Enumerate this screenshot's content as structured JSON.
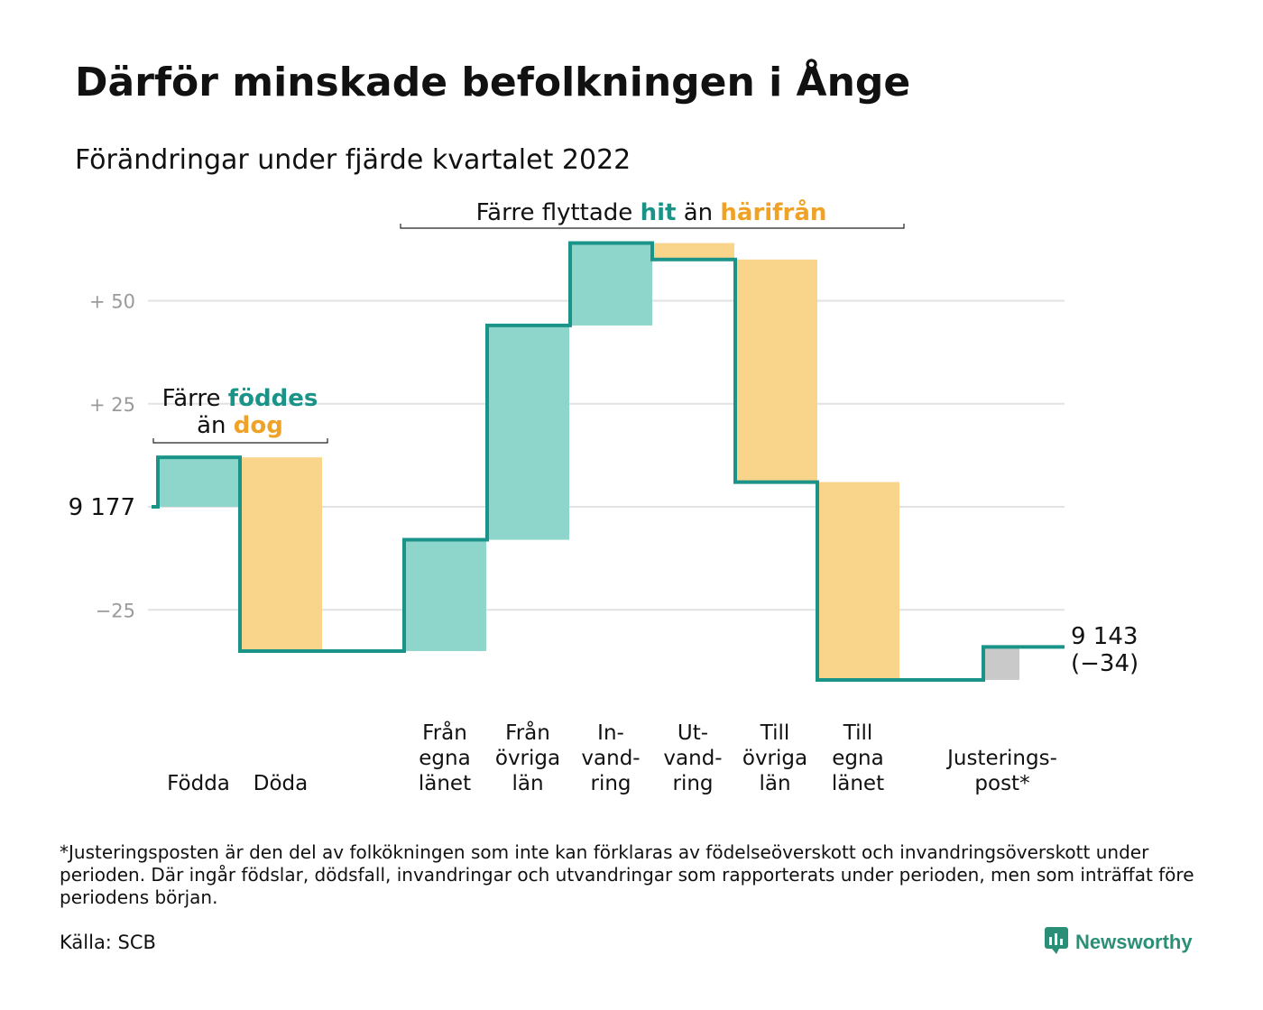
{
  "title": "Därför minskade befolkningen i Ånge",
  "subtitle": "Förändringar under fjärde kvartalet 2022",
  "colors": {
    "increase": "#8ed5cc",
    "decrease": "#f9d58c",
    "adjustment": "#c9c9c9",
    "line": "#1a9488",
    "accent_teal": "#1a9488",
    "accent_orange": "#f0a227",
    "grid": "#e2e2e2",
    "brand": "#2a8f76"
  },
  "chart_data": {
    "type": "waterfall",
    "start_value": 9177,
    "end_value": 9143,
    "start_label": "9 177",
    "end_label": "9 143",
    "end_change_label": "(−34)",
    "ylim": [
      -37,
      67
    ],
    "yticks": [
      {
        "value": 50,
        "label": "+ 50"
      },
      {
        "value": 25,
        "label": "+ 25"
      },
      {
        "value": -25,
        "label": "−25"
      }
    ],
    "steps": [
      {
        "name": "Födda",
        "label_lines": [
          "Födda"
        ],
        "value": 12,
        "kind": "increase"
      },
      {
        "name": "Döda",
        "label_lines": [
          "Döda"
        ],
        "value": -47,
        "kind": "decrease"
      },
      {
        "name": "Från egna länet",
        "label_lines": [
          "Från",
          "egna",
          "länet"
        ],
        "value": 27,
        "kind": "increase"
      },
      {
        "name": "Från övriga län",
        "label_lines": [
          "Från",
          "övriga",
          "län"
        ],
        "value": 52,
        "kind": "increase"
      },
      {
        "name": "Invandring",
        "label_lines": [
          "In-",
          "vand-",
          "ring"
        ],
        "value": 20,
        "kind": "increase"
      },
      {
        "name": "Utvandring",
        "label_lines": [
          "Ut-",
          "vand-",
          "ring"
        ],
        "value": -4,
        "kind": "decrease"
      },
      {
        "name": "Till övriga län",
        "label_lines": [
          "Till",
          "övriga",
          "län"
        ],
        "value": -54,
        "kind": "decrease"
      },
      {
        "name": "Till egna länet",
        "label_lines": [
          "Till",
          "egna",
          "länet"
        ],
        "value": -48,
        "kind": "decrease"
      },
      {
        "name": "Justeringspost*",
        "label_lines": [
          "Justerings-",
          "post*"
        ],
        "value": 8,
        "kind": "adjustment"
      }
    ],
    "annotations": [
      {
        "id": "births",
        "lines": [
          [
            {
              "text": "Färre ",
              "style": "normal"
            },
            {
              "text": "föddes",
              "style": "teal"
            }
          ],
          [
            {
              "text": "än ",
              "style": "normal"
            },
            {
              "text": "dog",
              "style": "orange"
            }
          ]
        ]
      },
      {
        "id": "moves",
        "lines": [
          [
            {
              "text": "Färre flyttade ",
              "style": "normal"
            },
            {
              "text": "hit",
              "style": "teal"
            },
            {
              "text": " än ",
              "style": "normal"
            },
            {
              "text": "härifrån",
              "style": "orange"
            }
          ]
        ]
      }
    ]
  },
  "footnote": "*Justeringsposten är den del av folkökningen som inte kan förklaras av födelseöverskott och invandringsöverskott under perioden. Där ingår födslar, dödsfall, invandringar och utvandringar som rapporterats under perioden, men som inträffat före periodens början.",
  "source": "Källa: SCB",
  "logo_text": "Newsworthy"
}
